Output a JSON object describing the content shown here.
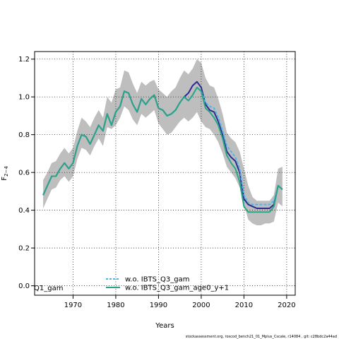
{
  "chart_data": {
    "type": "line",
    "title": "",
    "xlabel": "Years",
    "ylabel_main": "F",
    "ylabel_sub": "2−4",
    "xlim": [
      1961,
      2022
    ],
    "ylim": [
      -0.05,
      1.24
    ],
    "x_ticks": [
      1970,
      1980,
      1990,
      2000,
      2010,
      2020
    ],
    "y_ticks": [
      0.0,
      0.2,
      0.4,
      0.6,
      0.8,
      1.0,
      1.2
    ],
    "y_tick_labels": [
      "0.0",
      "0.2",
      "0.4",
      "0.6",
      "0.8",
      "1.0",
      "1.2"
    ],
    "grid": true,
    "legend_placement": "bottom-center",
    "x": [
      1963,
      1964,
      1965,
      1966,
      1967,
      1968,
      1969,
      1970,
      1971,
      1972,
      1973,
      1974,
      1975,
      1976,
      1977,
      1978,
      1979,
      1980,
      1981,
      1982,
      1983,
      1984,
      1985,
      1986,
      1987,
      1988,
      1989,
      1990,
      1991,
      1992,
      1993,
      1994,
      1995,
      1996,
      1997,
      1998,
      1999,
      2000,
      2001,
      2002,
      2003,
      2004,
      2005,
      2006,
      2007,
      2008,
      2009,
      2010,
      2011,
      2012,
      2013,
      2014,
      2015,
      2016,
      2017,
      2018,
      2019
    ],
    "band": {
      "color": "#bebebe",
      "upper": [
        0.56,
        0.6,
        0.65,
        0.66,
        0.7,
        0.73,
        0.7,
        0.73,
        0.82,
        0.89,
        0.87,
        0.84,
        0.89,
        0.93,
        0.89,
        1.0,
        0.97,
        1.04,
        1.05,
        1.14,
        1.13,
        1.07,
        1.02,
        1.08,
        1.06,
        1.08,
        1.09,
        1.04,
        1.02,
        1.0,
        1.03,
        1.05,
        1.1,
        1.14,
        1.12,
        1.15,
        1.2,
        1.18,
        1.1,
        1.06,
        1.05,
        0.99,
        0.91,
        0.81,
        0.78,
        0.76,
        0.71,
        0.62,
        0.53,
        0.47,
        0.45,
        0.45,
        0.45,
        0.45,
        0.48,
        0.62,
        0.63
      ],
      "lower": [
        0.41,
        0.46,
        0.51,
        0.52,
        0.56,
        0.58,
        0.55,
        0.58,
        0.67,
        0.73,
        0.72,
        0.69,
        0.74,
        0.78,
        0.74,
        0.84,
        0.83,
        0.85,
        0.89,
        0.95,
        0.93,
        0.88,
        0.85,
        0.91,
        0.89,
        0.91,
        0.93,
        0.86,
        0.83,
        0.8,
        0.81,
        0.84,
        0.87,
        0.89,
        0.87,
        0.89,
        0.92,
        0.87,
        0.84,
        0.83,
        0.8,
        0.76,
        0.7,
        0.63,
        0.6,
        0.57,
        0.52,
        0.43,
        0.35,
        0.33,
        0.32,
        0.32,
        0.33,
        0.33,
        0.34,
        0.44,
        0.42
      ]
    },
    "series": [
      {
        "name": "",
        "color": "#2c2a8e",
        "dash": "",
        "values": [
          0.48,
          0.53,
          0.58,
          0.58,
          0.62,
          0.65,
          0.62,
          0.65,
          0.74,
          0.8,
          0.79,
          0.75,
          0.8,
          0.85,
          0.82,
          0.91,
          0.85,
          0.92,
          0.95,
          1.03,
          1.02,
          0.96,
          0.92,
          0.99,
          0.96,
          0.99,
          1.01,
          0.94,
          0.93,
          0.9,
          0.91,
          0.93,
          0.97,
          1.0,
          1.02,
          1.06,
          1.08,
          1.05,
          0.96,
          0.93,
          0.92,
          0.87,
          0.8,
          0.71,
          0.68,
          0.66,
          0.6,
          0.46,
          0.43,
          0.42,
          0.41,
          0.41,
          0.41,
          0.41,
          0.43,
          0.53,
          0.51
        ]
      },
      {
        "name": "w.o. IBTS_Q3_gam",
        "color": "#52b4e6",
        "dash": "4,2",
        "values": [
          0.48,
          0.53,
          0.58,
          0.58,
          0.62,
          0.65,
          0.62,
          0.65,
          0.74,
          0.8,
          0.79,
          0.75,
          0.8,
          0.85,
          0.82,
          0.91,
          0.85,
          0.92,
          0.95,
          1.03,
          1.02,
          0.96,
          0.92,
          0.99,
          0.96,
          0.99,
          1.01,
          0.94,
          0.93,
          0.9,
          0.91,
          0.93,
          0.97,
          1.0,
          0.98,
          1.01,
          1.05,
          1.03,
          0.97,
          0.95,
          0.94,
          0.89,
          0.82,
          0.74,
          0.71,
          0.68,
          0.62,
          0.48,
          0.44,
          0.43,
          0.43,
          0.43,
          0.43,
          0.43,
          0.45,
          0.53,
          0.51
        ]
      },
      {
        "name": "w.o. IBTS_Q3_gam_age0_y+1",
        "color": "#2aa587",
        "dash": "",
        "values": [
          0.48,
          0.53,
          0.58,
          0.58,
          0.62,
          0.65,
          0.62,
          0.65,
          0.74,
          0.8,
          0.79,
          0.75,
          0.8,
          0.85,
          0.82,
          0.91,
          0.85,
          0.92,
          0.95,
          1.03,
          1.02,
          0.96,
          0.92,
          0.99,
          0.96,
          0.99,
          1.01,
          0.94,
          0.93,
          0.9,
          0.91,
          0.93,
          0.97,
          1.0,
          0.98,
          1.01,
          1.05,
          1.03,
          0.94,
          0.92,
          0.89,
          0.85,
          0.78,
          0.69,
          0.65,
          0.62,
          0.55,
          0.42,
          0.39,
          0.39,
          0.39,
          0.39,
          0.39,
          0.39,
          0.42,
          0.53,
          0.51
        ]
      }
    ],
    "legend_left_text": "Q1_gam",
    "footer": "stockassessment.org, roscod_bench21_01_Mplus_Cscale, r14084 , git: c28bdc2a44ad"
  }
}
